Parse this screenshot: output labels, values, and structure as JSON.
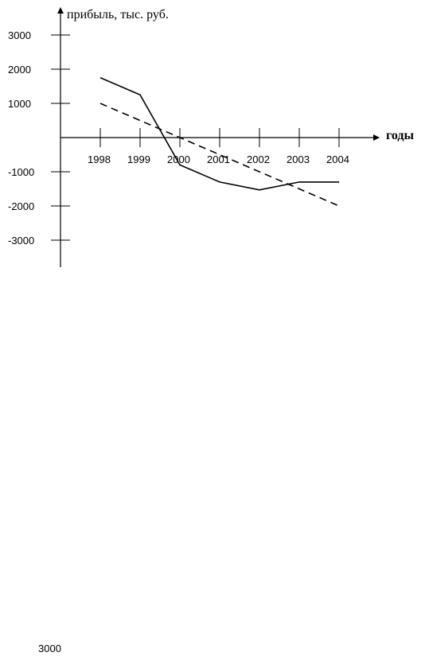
{
  "chart_data": {
    "type": "line",
    "ylabel": "прибыль, тыс. руб.",
    "xlabel": "годы",
    "categories": [
      "1998",
      "1999",
      "2000",
      "2001",
      "2002",
      "2003",
      "2004"
    ],
    "y_ticks": [
      3000,
      2000,
      1000,
      -1000,
      -2000,
      -3000
    ],
    "y_tick_labels": [
      "3000",
      "2000",
      "1000",
      "-1000",
      "-2000",
      "-3000"
    ],
    "ylim": [
      -3700,
      3800
    ],
    "grid": false,
    "legend": "none",
    "series": [
      {
        "style": "solid",
        "values": [
          1750,
          1250,
          -800,
          -1300,
          -1530,
          -1300,
          -1300
        ]
      },
      {
        "style": "dashed",
        "values": [
          1000,
          500,
          0,
          -500,
          -1000,
          -1500,
          -2000
        ]
      }
    ]
  },
  "footer_label": "3000"
}
